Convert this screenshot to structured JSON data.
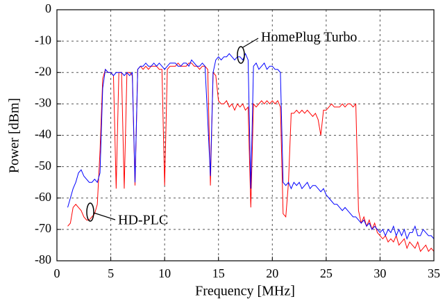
{
  "chart_data": {
    "type": "line",
    "x_label": "Frequency [MHz]",
    "y_label": "Power [dBm]",
    "xlim": [
      0,
      35
    ],
    "ylim": [
      -80,
      0
    ],
    "xticks": [
      0,
      5,
      10,
      15,
      20,
      25,
      30,
      35
    ],
    "yticks": [
      0,
      -10,
      -20,
      -30,
      -40,
      -50,
      -60,
      -70,
      -80
    ],
    "grid": true,
    "x": [
      1,
      1.25,
      1.5,
      1.75,
      2,
      2.25,
      2.5,
      2.75,
      3,
      3.25,
      3.5,
      3.75,
      4,
      4.25,
      4.5,
      4.75,
      5,
      5.25,
      5.5,
      5.75,
      6,
      6.25,
      6.5,
      6.75,
      7,
      7.25,
      7.5,
      7.75,
      8,
      8.25,
      8.5,
      8.75,
      9,
      9.25,
      9.5,
      9.75,
      10,
      10.25,
      10.5,
      10.75,
      11,
      11.25,
      11.5,
      11.75,
      12,
      12.25,
      12.5,
      12.75,
      13,
      13.25,
      13.5,
      13.75,
      14,
      14.25,
      14.5,
      14.75,
      15,
      15.25,
      15.5,
      15.75,
      16,
      16.25,
      16.5,
      16.75,
      17,
      17.25,
      17.5,
      17.75,
      18,
      18.25,
      18.5,
      18.75,
      19,
      19.25,
      19.5,
      19.75,
      20,
      20.25,
      20.5,
      20.75,
      21,
      21.25,
      21.5,
      21.75,
      22,
      22.25,
      22.5,
      22.75,
      23,
      23.25,
      23.5,
      23.75,
      24,
      24.25,
      24.5,
      24.75,
      25,
      25.25,
      25.5,
      25.75,
      26,
      26.25,
      26.5,
      26.75,
      27,
      27.25,
      27.5,
      27.75,
      28,
      28.25,
      28.5,
      28.75,
      29,
      29.25,
      29.5,
      29.75,
      30,
      30.25,
      30.5,
      30.75,
      31,
      31.25,
      31.5,
      31.75,
      32,
      32.25,
      32.5,
      32.75,
      33,
      33.25,
      33.5,
      33.75,
      34,
      34.25,
      34.5,
      34.75,
      35
    ],
    "series": [
      {
        "name": "HomePlug Turbo",
        "color": "#0000ff",
        "values": [
          -63,
          -60,
          -57,
          -55,
          -52,
          -51,
          -53,
          -54,
          -55,
          -55,
          -54,
          -55,
          -52,
          -25,
          -19,
          -20,
          -20,
          -21,
          -20,
          -20,
          -20,
          -21,
          -20,
          -21,
          -20,
          -55,
          -19,
          -18,
          -18,
          -17,
          -18,
          -18,
          -17,
          -18,
          -17,
          -18,
          -19,
          -18,
          -17,
          -17,
          -17,
          -18,
          -18,
          -17,
          -17,
          -18,
          -16,
          -17,
          -18,
          -18,
          -17,
          -18,
          -35,
          -53,
          -20,
          -16,
          -15,
          -16,
          -15,
          -15,
          -14,
          -15,
          -16,
          -15,
          -15,
          -16,
          -14,
          -16,
          -57,
          -18,
          -17,
          -19,
          -18,
          -17,
          -19,
          -18,
          -18,
          -19,
          -19,
          -20,
          -55,
          -56,
          -55,
          -57,
          -55,
          -56,
          -55,
          -57,
          -56,
          -55,
          -57,
          -56,
          -56,
          -57,
          -58,
          -57,
          -59,
          -60,
          -61,
          -62,
          -62,
          -63,
          -64,
          -63,
          -64,
          -65,
          -66,
          -66,
          -67,
          -68,
          -67,
          -69,
          -68,
          -70,
          -69,
          -70,
          -71,
          -70,
          -72,
          -70,
          -71,
          -69,
          -72,
          -70,
          -72,
          -70,
          -73,
          -71,
          -71,
          -69,
          -72,
          -72,
          -70,
          -71,
          -72,
          -72,
          -73
        ]
      },
      {
        "name": "HD-PLC",
        "color": "#ff0000",
        "values": [
          -69,
          -68,
          -63,
          -62,
          -63,
          -64,
          -66,
          -67,
          -67,
          -66,
          -65,
          -62,
          -45,
          -22,
          -19,
          -20,
          -20,
          -21,
          -57,
          -20,
          -20,
          -57,
          -20,
          -20,
          -21,
          -56,
          -19,
          -18,
          -19,
          -18,
          -19,
          -18,
          -18,
          -18,
          -19,
          -19,
          -56,
          -19,
          -18,
          -18,
          -18,
          -17,
          -18,
          -18,
          -18,
          -17,
          -17,
          -18,
          -18,
          -19,
          -18,
          -18,
          -19,
          -56,
          -20,
          -21,
          -29,
          -30,
          -30,
          -29,
          -31,
          -30,
          -32,
          -30,
          -31,
          -30,
          -32,
          -31,
          -63,
          -30,
          -31,
          -30,
          -29,
          -30,
          -29,
          -30,
          -29,
          -30,
          -29,
          -31,
          -65,
          -66,
          -55,
          -33,
          -33,
          -32,
          -33,
          -32,
          -33,
          -32,
          -33,
          -34,
          -33,
          -35,
          -40,
          -32,
          -32,
          -31,
          -30,
          -31,
          -31,
          -31,
          -30,
          -31,
          -30,
          -30,
          -31,
          -30,
          -64,
          -68,
          -66,
          -69,
          -67,
          -70,
          -68,
          -71,
          -72,
          -73,
          -72,
          -74,
          -73,
          -74,
          -72,
          -75,
          -74,
          -73,
          -76,
          -74,
          -75,
          -76,
          -74,
          -77,
          -76,
          -75,
          -77,
          -76,
          -77
        ]
      }
    ]
  }
}
